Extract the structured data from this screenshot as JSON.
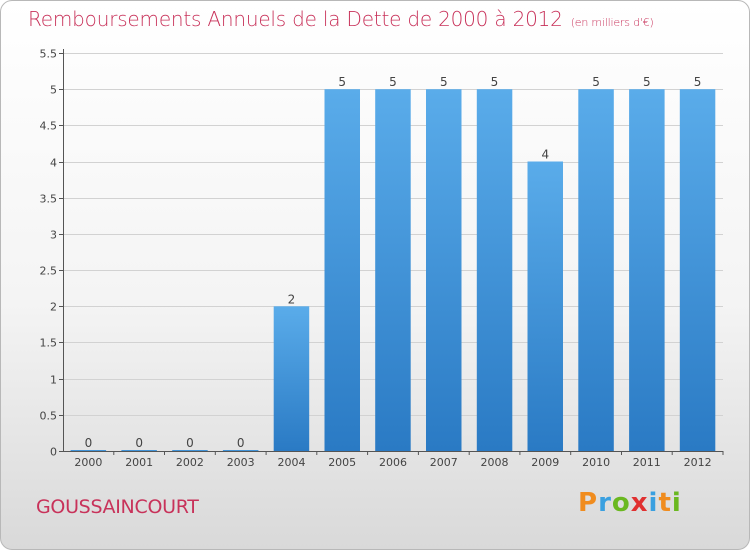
{
  "chart_data": {
    "type": "bar",
    "title": "Remboursements Annuels de la Dette de 2000 à 2012",
    "unit": "(en milliers d'€)",
    "xlabel": "",
    "ylabel": "",
    "categories": [
      "2000",
      "2001",
      "2002",
      "2003",
      "2004",
      "2005",
      "2006",
      "2007",
      "2008",
      "2009",
      "2010",
      "2011",
      "2012"
    ],
    "values": [
      0,
      0,
      0,
      0,
      2,
      5,
      5,
      5,
      5,
      4,
      5,
      5,
      5
    ],
    "ylim": [
      0,
      5.5
    ],
    "yticks": [
      0,
      0.5,
      1,
      1.5,
      2,
      2.5,
      3,
      3.5,
      4,
      4.5,
      5,
      5.5
    ],
    "ytick_labels": [
      "0",
      "0.5",
      "1",
      "1.5",
      "2",
      "2.5",
      "3",
      "3.5",
      "4",
      "4.5",
      "5",
      "5.5"
    ],
    "grid": true,
    "bar_color": "#3a8fd6",
    "title_color": "#c8325a"
  },
  "footer": {
    "commune": "GOUSSAINCOURT",
    "logo_text": "Proxiti",
    "logo_colors": [
      "#f08c1e",
      "#3aa0e0",
      "#6ab820",
      "#e03030",
      "#3aa0e0",
      "#f08c1e",
      "#6ab820"
    ]
  }
}
